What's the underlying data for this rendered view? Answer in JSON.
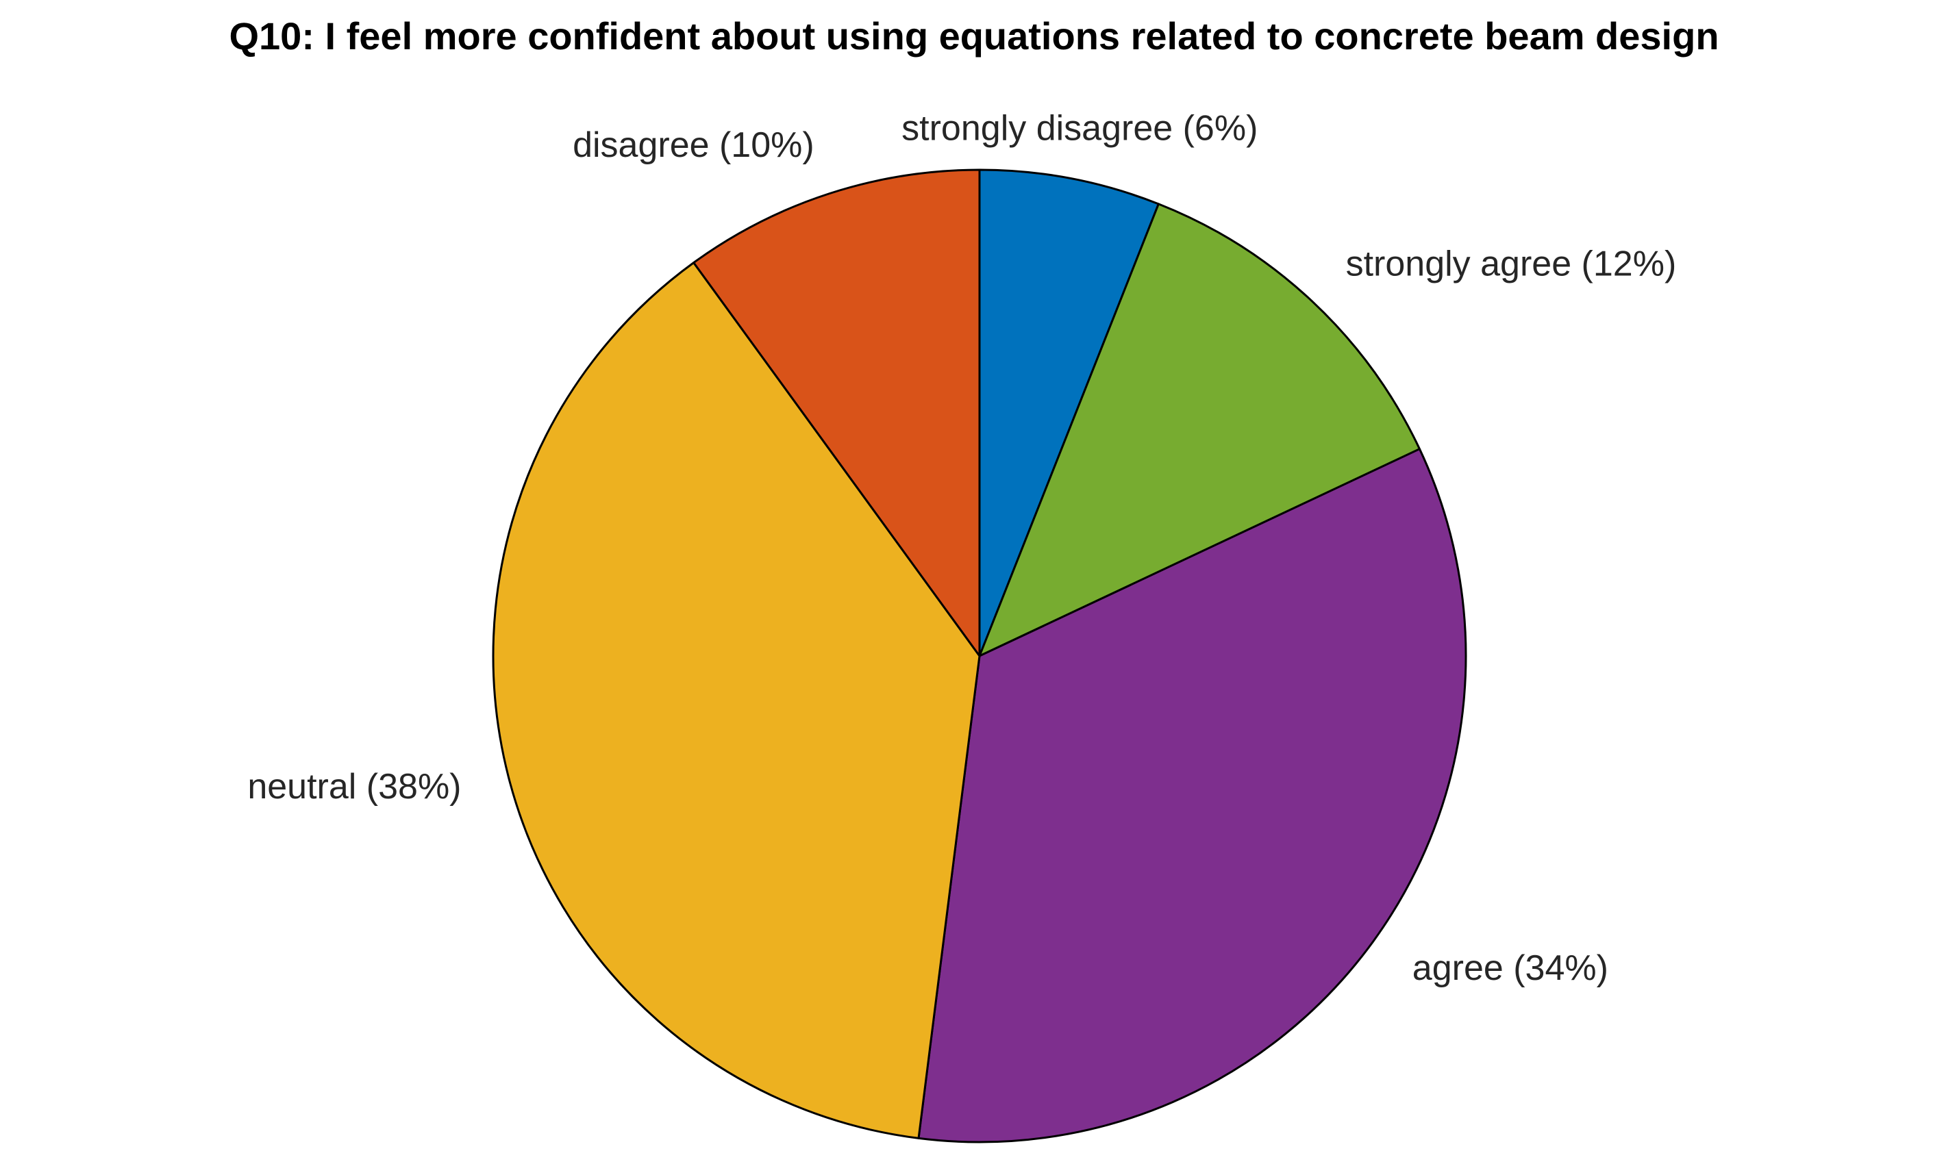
{
  "chart_data": {
    "type": "pie",
    "title": "Q10: I feel more confident about using equations related to concrete beam design",
    "start": "top",
    "direction": "clockwise",
    "slices": [
      {
        "key": "strongly-disagree",
        "name": "strongly disagree",
        "value": 6,
        "label": "strongly disagree (6%)",
        "color": "#0072BD"
      },
      {
        "key": "strongly-agree",
        "name": "strongly agree",
        "value": 12,
        "label": "strongly agree (12%)",
        "color": "#77AC30"
      },
      {
        "key": "agree",
        "name": "agree",
        "value": 34,
        "label": "agree (34%)",
        "color": "#7E2F8E"
      },
      {
        "key": "neutral",
        "name": "neutral",
        "value": 38,
        "label": "neutral (38%)",
        "color": "#EDB120"
      },
      {
        "key": "disagree",
        "name": "disagree",
        "value": 10,
        "label": "disagree (10%)",
        "color": "#D95319"
      }
    ]
  }
}
